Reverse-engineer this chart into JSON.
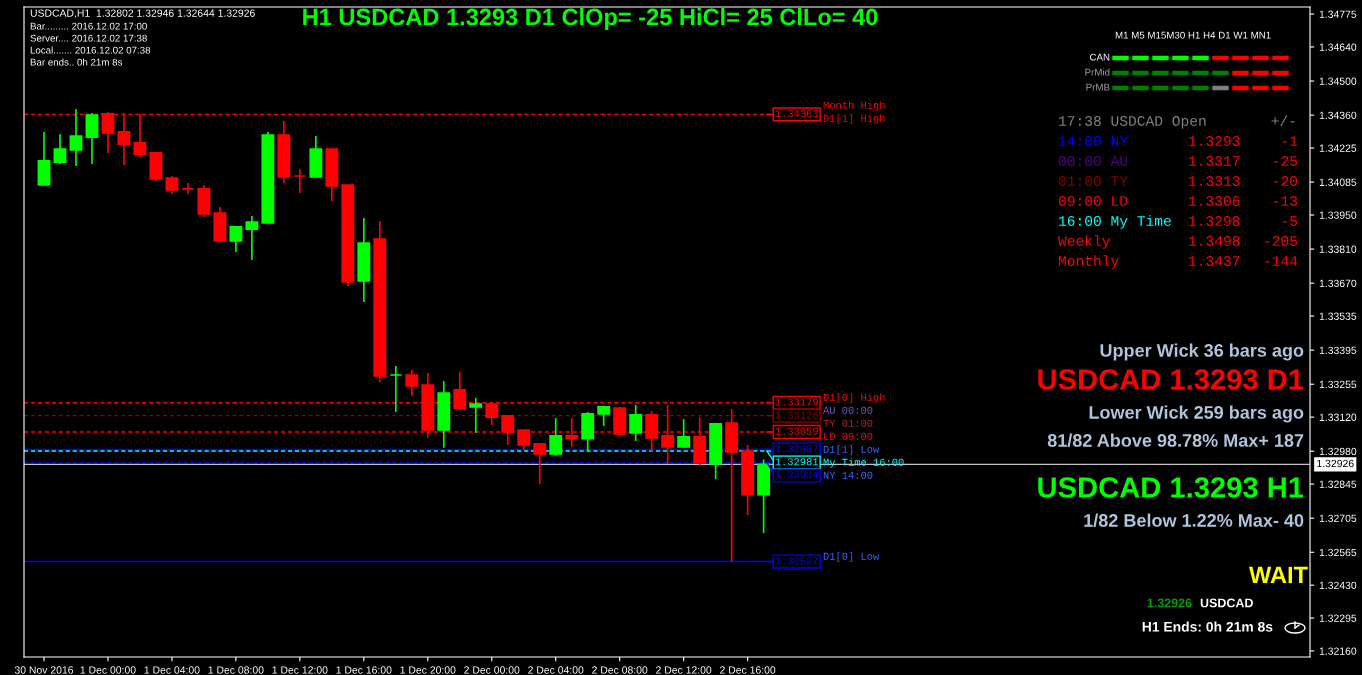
{
  "chart_data": {
    "type": "candlestick",
    "title": "H1 USDCAD 1.3293 D1 ClOp= -25 HiCl= 25 ClLo= 40",
    "x": [
      "2016-11-30T20:00",
      "2016-11-30T21:00",
      "2016-11-30T22:00",
      "2016-11-30T23:00",
      "2016-12-01T00:00",
      "2016-12-01T01:00",
      "2016-12-01T02:00",
      "2016-12-01T03:00",
      "2016-12-01T04:00",
      "2016-12-01T05:00",
      "2016-12-01T06:00",
      "2016-12-01T07:00",
      "2016-12-01T08:00",
      "2016-12-01T09:00",
      "2016-12-01T10:00",
      "2016-12-01T11:00",
      "2016-12-01T12:00",
      "2016-12-01T13:00",
      "2016-12-01T14:00",
      "2016-12-01T15:00",
      "2016-12-01T16:00",
      "2016-12-01T17:00",
      "2016-12-01T18:00",
      "2016-12-01T19:00",
      "2016-12-01T20:00",
      "2016-12-01T21:00",
      "2016-12-01T22:00",
      "2016-12-01T23:00",
      "2016-12-02T00:00",
      "2016-12-02T01:00",
      "2016-12-02T02:00",
      "2016-12-02T03:00",
      "2016-12-02T04:00",
      "2016-12-02T05:00",
      "2016-12-02T06:00",
      "2016-12-02T07:00",
      "2016-12-02T08:00",
      "2016-12-02T09:00",
      "2016-12-02T10:00",
      "2016-12-02T11:00",
      "2016-12-02T12:00",
      "2016-12-02T13:00",
      "2016-12-02T14:00",
      "2016-12-02T15:00",
      "2016-12-02T16:00",
      "2016-12-02T17:00"
    ],
    "ohlc": [
      [
        1.34073,
        1.34291,
        1.34073,
        1.34172
      ],
      [
        1.34167,
        1.34282,
        1.34159,
        1.34221
      ],
      [
        1.34217,
        1.34385,
        1.34151,
        1.34274
      ],
      [
        1.3427,
        1.34369,
        1.34159,
        1.3436
      ],
      [
        1.34365,
        1.34373,
        1.34205,
        1.34287
      ],
      [
        1.34291,
        1.34369,
        1.34155,
        1.34241
      ],
      [
        1.34246,
        1.34365,
        1.34188,
        1.342
      ],
      [
        1.34205,
        1.34209,
        1.3409,
        1.34098
      ],
      [
        1.34102,
        1.3411,
        1.34036,
        1.34053
      ],
      [
        1.34057,
        1.34081,
        1.34036,
        1.34057
      ],
      [
        1.34057,
        1.34073,
        1.33942,
        1.33954
      ],
      [
        1.33958,
        1.33983,
        1.33839,
        1.33843
      ],
      [
        1.33843,
        1.33901,
        1.33798,
        1.33901
      ],
      [
        1.33892,
        1.33946,
        1.33765,
        1.33921
      ],
      [
        1.33917,
        1.34291,
        1.33917,
        1.34278
      ],
      [
        1.34278,
        1.34336,
        1.34081,
        1.34106
      ],
      [
        1.3411,
        1.34139,
        1.3404,
        1.3411
      ],
      [
        1.34106,
        1.34274,
        1.34106,
        1.34221
      ],
      [
        1.34221,
        1.34221,
        1.34007,
        1.34069
      ],
      [
        1.34073,
        1.34073,
        1.33658,
        1.33675
      ],
      [
        1.33679,
        1.33938,
        1.33593,
        1.33835
      ],
      [
        1.33851,
        1.33925,
        1.33264,
        1.33289
      ],
      [
        1.33293,
        1.3333,
        1.33141,
        1.33293
      ],
      [
        1.33293,
        1.33314,
        1.33207,
        1.33248
      ],
      [
        1.33252,
        1.33301,
        1.33035,
        1.33067
      ],
      [
        1.33067,
        1.33268,
        1.32994,
        1.33219
      ],
      [
        1.33232,
        1.33305,
        1.33149,
        1.33157
      ],
      [
        1.33162,
        1.33199,
        1.33055,
        1.33174
      ],
      [
        1.33174,
        1.33179,
        1.33088,
        1.3312
      ],
      [
        1.33125,
        1.33125,
        1.33006,
        1.33059
      ],
      [
        1.33067,
        1.33067,
        1.32985,
        1.33006
      ],
      [
        1.3301,
        1.3301,
        1.32846,
        1.32969
      ],
      [
        1.32969,
        1.33116,
        1.32961,
        1.33043
      ],
      [
        1.33043,
        1.33116,
        1.32998,
        1.33031
      ],
      [
        1.33031,
        1.33141,
        1.32981,
        1.33133
      ],
      [
        1.33133,
        1.33162,
        1.33084,
        1.33162
      ],
      [
        1.33157,
        1.33162,
        1.33047,
        1.33051
      ],
      [
        1.33055,
        1.3317,
        1.33022,
        1.33129
      ],
      [
        1.33129,
        1.33145,
        1.32977,
        1.33035
      ],
      [
        1.33043,
        1.3317,
        1.32928,
        1.32998
      ],
      [
        1.32998,
        1.33112,
        1.32994,
        1.33039
      ],
      [
        1.33039,
        1.3312,
        1.3292,
        1.32932
      ],
      [
        1.32928,
        1.33096,
        1.32866,
        1.33092
      ],
      [
        1.33096,
        1.33153,
        1.32527,
        1.32977
      ],
      [
        1.32981,
        1.33006,
        1.32718,
        1.32802
      ],
      [
        1.32802,
        1.32946,
        1.32644,
        1.32926
      ]
    ],
    "colors": [
      "#00ff00",
      "#00ff00",
      "#00ff00",
      "#00ff00",
      "#ff0000",
      "#ff0000",
      "#ff0000",
      "#ff0000",
      "#ff0000",
      "#ff0000",
      "#ff0000",
      "#ff0000",
      "#00ff00",
      "#00ff00",
      "#00ff00",
      "#ff0000",
      "#ff0000",
      "#00ff00",
      "#ff0000",
      "#ff0000",
      "#00ff00",
      "#ff0000",
      "#00ff00",
      "#ff0000",
      "#ff0000",
      "#00ff00",
      "#ff0000",
      "#00ff00",
      "#ff0000",
      "#ff0000",
      "#ff0000",
      "#ff0000",
      "#00ff00",
      "#ff0000",
      "#00ff00",
      "#00ff00",
      "#ff0000",
      "#00ff00",
      "#ff0000",
      "#ff0000",
      "#00ff00",
      "#ff0000",
      "#00ff00",
      "#ff0000",
      "#ff0000",
      "#00ff00"
    ],
    "xlim": [
      "2016-11-30T18:45",
      "2016-12-04T03:10"
    ],
    "xticks": [
      {
        "value": "2016-11-30T20:00",
        "label": "30 Nov 2016"
      },
      {
        "value": "2016-12-01T00:00",
        "label": "1 Dec 00:00"
      },
      {
        "value": "2016-12-01T04:00",
        "label": "1 Dec 04:00"
      },
      {
        "value": "2016-12-01T08:00",
        "label": "1 Dec 08:00"
      },
      {
        "value": "2016-12-01T12:00",
        "label": "1 Dec 12:00"
      },
      {
        "value": "2016-12-01T16:00",
        "label": "1 Dec 16:00"
      },
      {
        "value": "2016-12-01T20:00",
        "label": "1 Dec 20:00"
      },
      {
        "value": "2016-12-02T00:00",
        "label": "2 Dec 00:00"
      },
      {
        "value": "2016-12-02T04:00",
        "label": "2 Dec 04:00"
      },
      {
        "value": "2016-12-02T08:00",
        "label": "2 Dec 08:00"
      },
      {
        "value": "2016-12-02T12:00",
        "label": "2 Dec 12:00"
      },
      {
        "value": "2016-12-02T16:00",
        "label": "2 Dec 16:00"
      }
    ],
    "ylim": [
      1.32135,
      1.34804
    ],
    "yticks": [
      1.34775,
      {
        "value": 1.3464,
        "label": "1.34640"
      },
      {
        "value": 1.345,
        "label": "1.34500"
      },
      {
        "value": 1.3436,
        "label": "1.34360"
      },
      1.34225,
      1.34085,
      {
        "value": 1.3395,
        "label": "1.33950"
      },
      {
        "value": 1.3381,
        "label": "1.33810"
      },
      {
        "value": 1.3367,
        "label": "1.33670"
      },
      1.33535,
      1.33395,
      1.33255,
      {
        "value": 1.3312,
        "label": "1.33120"
      },
      {
        "value": 1.3298,
        "label": "1.32980"
      },
      1.32845,
      1.32705,
      1.32565,
      {
        "value": 1.3243,
        "label": "1.32430"
      },
      1.32295,
      {
        "value": 1.3216,
        "label": "1.32160"
      }
    ],
    "ref_lines": [
      {
        "axis": "y",
        "value": 1.34363,
        "label": "1.34363",
        "color": "#ff0000",
        "line_style": "dashed"
      },
      {
        "axis": "y",
        "value": 1.33179,
        "label": "1.33179",
        "color": "#ff0000",
        "line_style": "dashed"
      },
      {
        "axis": "y",
        "value": 1.33126,
        "label": "1.33126",
        "color": "#8b0000",
        "line_style": "dashed"
      },
      {
        "axis": "y",
        "value": 1.33059,
        "label": "1.33059",
        "color": "#ff0000",
        "line_style": "dashed"
      },
      {
        "axis": "y",
        "value": 1.32987,
        "label": "1.32987",
        "color": "#0000ff",
        "line_style": "solid"
      },
      {
        "axis": "y",
        "value": 1.32981,
        "label": "1.32981",
        "color": "#00ffff",
        "line_style": "dashed"
      },
      {
        "axis": "y",
        "value": 1.32934,
        "label": "1.32934",
        "color": "#0000ff",
        "line_style": "dashed"
      },
      {
        "axis": "y",
        "value": 1.32527,
        "label": "1.32527",
        "color": "#0000ff",
        "line_style": "solid"
      },
      {
        "axis": "y",
        "value": 1.32926,
        "color": "#c0c0c0",
        "line_style": "solid"
      }
    ],
    "grid": false,
    "annotations": [
      "USDCAD,H1  1.32802 1.32946 1.32644 1.32926",
      "Bar......... 2016.12.02 17:00",
      "Server.... 2016.12.02 17:38",
      "Local....... 2016.12.02 07:38",
      "Bar ends.. 0h 21m 8s",
      "M1 M5 M15M30 H1 H4 D1 W1 MN1",
      "CAN",
      "PrMid",
      "PrMB",
      "17:38 USDCAD Open",
      "+/-",
      "14:00 NY",
      "1.3293",
      "-1",
      "00:00 AU",
      "1.3317",
      "-25",
      "01:00 TY",
      "1.3313",
      "-20",
      "09:00 LD",
      "1.3306",
      "-13",
      "16:00 My Time",
      "1.3298",
      "-5",
      "Weekly",
      "1.3498",
      "-205",
      "Monthly",
      "1.3437",
      "-144",
      "Upper Wick 36 bars ago",
      "USDCAD 1.3293 D1",
      "Lower Wick 259 bars ago",
      "81/82 Above 98.78% Max+ 187",
      "USDCAD 1.3293 H1",
      "1/82 Below 1.22% Max- 40",
      "WAIT",
      "1.32926",
      "USDCAD",
      "H1 Ends: 0h 21m 8s",
      "Month High",
      "D1[1] High",
      "D1[0] High",
      "AU 00:00",
      "TY 01:00",
      "LD 09:00",
      "D1[1] Low",
      "My Time 16:00",
      "NY 14:00",
      "D1[0] Low"
    ]
  }
}
